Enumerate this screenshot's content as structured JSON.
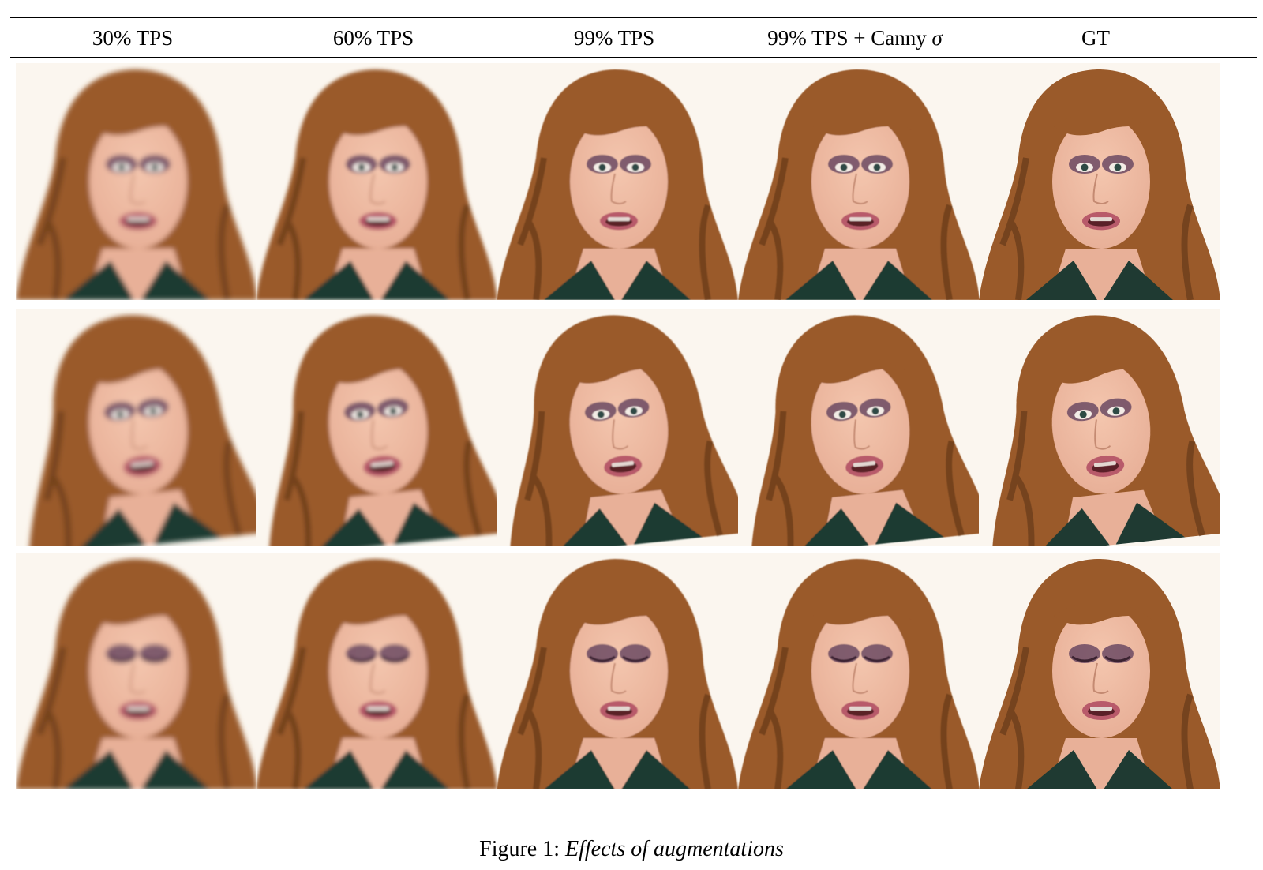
{
  "headers": [
    {
      "text": "30% TPS",
      "symbol": ""
    },
    {
      "text": "60% TPS",
      "symbol": ""
    },
    {
      "text": "99% TPS",
      "symbol": ""
    },
    {
      "text": "99% TPS + Canny ",
      "symbol": "σ"
    },
    {
      "text": "GT",
      "symbol": ""
    }
  ],
  "rows": [
    {
      "eyes_closed": false,
      "mouth_open": 0.45
    },
    {
      "eyes_closed": false,
      "mouth_open": 0.6
    },
    {
      "eyes_closed": true,
      "mouth_open": 0.5
    }
  ],
  "columns_blur": [
    3.2,
    2.4,
    0.9,
    0.4,
    0
  ],
  "colors": {
    "background": "#fbf6ef",
    "hair": "#9a5a2a",
    "hair_dark": "#5e3418",
    "skin": "#e8b098",
    "lips": "#b85a6a",
    "eyeshadow": "#5a3a5a",
    "shirt": "#1f3a32"
  },
  "caption": {
    "label": "Figure 1: ",
    "text": "Effects of augmentations"
  }
}
